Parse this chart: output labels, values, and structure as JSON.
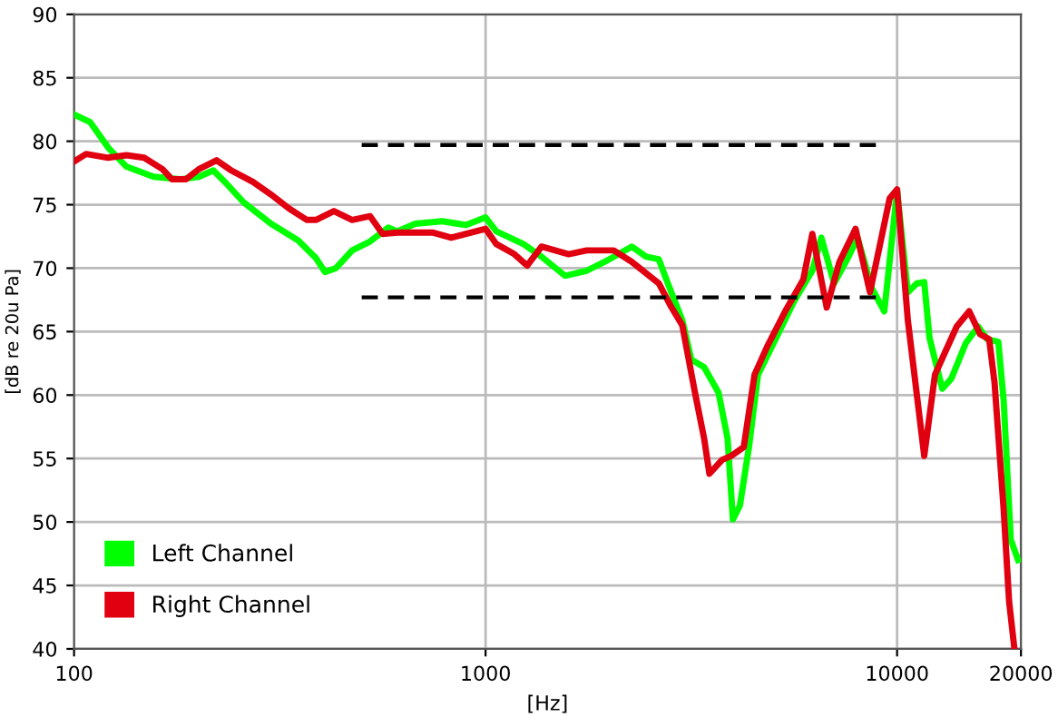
{
  "chart_data": {
    "type": "line",
    "xlabel": "[Hz]",
    "ylabel": "[dB re 20u Pa]",
    "log": "x",
    "grid": true,
    "legend": "bottom left",
    "line_style": "solid",
    "marker": "none",
    "xlim": [
      100,
      20000
    ],
    "xticks": [
      100,
      1000,
      10000,
      20000
    ],
    "ylim": [
      40,
      90
    ],
    "yticks": [
      40,
      45,
      50,
      55,
      60,
      65,
      70,
      75,
      80,
      85,
      90
    ],
    "series": [
      {
        "name": "Left Channel",
        "color": "#00ff00",
        "x": [
          100,
          109.5,
          121,
          134,
          156,
          181,
          201,
          218,
          234,
          258,
          301,
          350,
          387,
          407,
          433,
          474,
          524,
          580,
          610,
          675,
          785,
          895,
          1000,
          1062,
          1236,
          1368,
          1560,
          1761,
          1948,
          2266,
          2456,
          2636,
          2773,
          3006,
          3162,
          3396,
          3681,
          3873,
          3990,
          4150,
          4366,
          4592,
          5082,
          5623,
          6223,
          6546,
          7030,
          7621,
          8017,
          8690,
          9311,
          10000,
          10620,
          11170,
          11640,
          11990,
          12880,
          13550,
          14690,
          15740,
          16560,
          17620,
          18160,
          18890,
          19680
        ],
        "values": [
          82.1,
          81.5,
          79.5,
          78,
          77.2,
          77,
          77.2,
          77.7,
          76.7,
          75.2,
          73.5,
          72.2,
          70.8,
          69.7,
          70,
          71.4,
          72.1,
          73.2,
          72.9,
          73.5,
          73.7,
          73.4,
          74,
          72.9,
          71.9,
          70.9,
          69.4,
          69.8,
          70.5,
          71.7,
          70.9,
          70.7,
          68.8,
          65.9,
          62.8,
          62.2,
          60.2,
          56.6,
          50.2,
          51.3,
          55.9,
          61.6,
          64.5,
          67.4,
          69.8,
          72.4,
          68.8,
          70.9,
          72.4,
          68.4,
          66.6,
          76.1,
          68.1,
          68.8,
          68.9,
          64.5,
          60.5,
          61.3,
          64.1,
          65.4,
          64.4,
          64.2,
          59.5,
          48.6,
          47
        ]
      },
      {
        "name": "Right Channel",
        "color": "#e00010",
        "x": [
          100,
          107,
          121,
          134,
          148,
          164,
          173,
          187,
          201,
          222,
          241,
          272,
          301,
          333,
          368,
          387,
          428,
          474,
          524,
          562,
          610,
          746,
          825,
          1000,
          1062,
          1175,
          1262,
          1368,
          1592,
          1761,
          2048,
          2266,
          2636,
          2831,
          3006,
          3227,
          3396,
          3499,
          3757,
          3951,
          4240,
          4504,
          4831,
          5346,
          5916,
          6223,
          6745,
          7244,
          7925,
          8592,
          9594,
          10000,
          10620,
          11640,
          12360,
          12880,
          13960,
          14970,
          15910,
          16740,
          17250,
          18160,
          18720,
          19280
        ],
        "values": [
          78.4,
          79,
          78.7,
          78.9,
          78.7,
          77.8,
          77,
          77,
          77.8,
          78.5,
          77.7,
          76.8,
          75.8,
          74.7,
          73.8,
          73.8,
          74.5,
          73.8,
          74.1,
          72.7,
          72.8,
          72.8,
          72.4,
          73.1,
          71.9,
          71.1,
          70.2,
          71.7,
          71.1,
          71.4,
          71.4,
          70.5,
          68.8,
          66.9,
          65.5,
          60.2,
          56.6,
          53.8,
          54.9,
          55.2,
          55.9,
          61.6,
          63.8,
          66.6,
          69.1,
          72.7,
          66.9,
          70.5,
          73.1,
          68.1,
          75.5,
          76.2,
          65.9,
          55.2,
          61.6,
          62.9,
          65.4,
          66.6,
          64.8,
          64.4,
          61,
          50.9,
          43.7,
          40
        ]
      },
      {
        "color": "#000000",
        "line_style": "dashed",
        "x": [
          500,
          8900
        ],
        "values": [
          79.7,
          79.7
        ]
      },
      {
        "color": "#000000",
        "line_style": "dashed",
        "x": [
          500,
          8900
        ],
        "values": [
          67.7,
          67.7
        ]
      }
    ]
  }
}
